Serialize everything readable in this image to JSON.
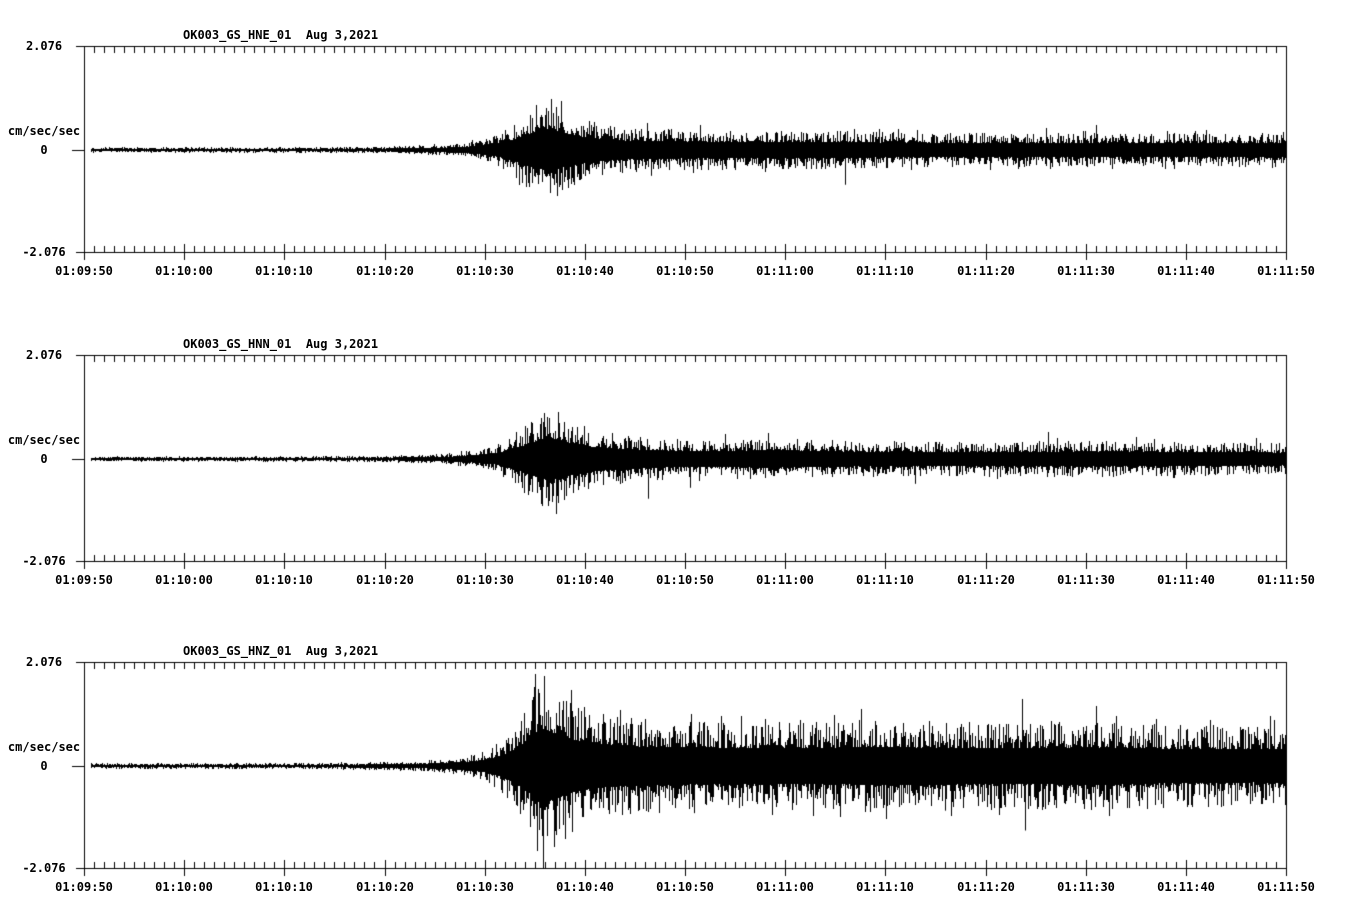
{
  "page": {
    "background_color": "#ffffff",
    "ink_color": "#000000",
    "description": "Three-channel strong-motion seismogram record, station OK003"
  },
  "chart_data": [
    {
      "type": "line",
      "subtype": "seismogram",
      "title_text": "OK003_GS_HNE_01  Aug 3,2021",
      "station_channel": "OK003_GS_HNE_01",
      "date_label": "Aug 3,2021",
      "units_label": "cm/sec/sec",
      "y_tick_labels": [
        "2.076",
        "0",
        "-2.076"
      ],
      "ylim": [
        -2.076,
        2.076
      ],
      "x_tick_labels": [
        "01:09:50",
        "01:10:00",
        "01:10:10",
        "01:10:20",
        "01:10:30",
        "01:10:40",
        "01:10:50",
        "01:11:00",
        "01:11:10",
        "01:11:20",
        "01:11:30",
        "01:11:40",
        "01:11:50"
      ],
      "x_span_seconds": 120,
      "seconds_per_minor_tick": 1,
      "seconds_per_major_tick": 10,
      "grid": false,
      "legend": false,
      "seed": 101,
      "trace_start_seconds": 0.65,
      "envelope_t": [
        0,
        20,
        30,
        36,
        39,
        41,
        43,
        45,
        46.5,
        48,
        51,
        55,
        60,
        70,
        85,
        105,
        120
      ],
      "envelope_a": [
        0.055,
        0.06,
        0.07,
        0.11,
        0.18,
        0.3,
        0.55,
        0.9,
        1.06,
        0.82,
        0.55,
        0.45,
        0.42,
        0.4,
        0.36,
        0.33,
        0.36
      ],
      "spikes": [
        {
          "t": 56.2,
          "a": 0.55
        },
        {
          "t": 56.6,
          "a": -0.52
        },
        {
          "t": 61.5,
          "a": 0.5
        },
        {
          "t": 76.0,
          "a": -0.7
        },
        {
          "t": 96.0,
          "a": 0.45
        },
        {
          "t": 101.0,
          "a": 0.5
        },
        {
          "t": 112.0,
          "a": 0.4
        }
      ]
    },
    {
      "type": "line",
      "subtype": "seismogram",
      "title_text": "OK003_GS_HNN_01  Aug 3,2021",
      "station_channel": "OK003_GS_HNN_01",
      "date_label": "Aug 3,2021",
      "units_label": "cm/sec/sec",
      "y_tick_labels": [
        "2.076",
        "0",
        "-2.076"
      ],
      "ylim": [
        -2.076,
        2.076
      ],
      "x_tick_labels": [
        "01:09:50",
        "01:10:00",
        "01:10:10",
        "01:10:20",
        "01:10:30",
        "01:10:40",
        "01:10:50",
        "01:11:00",
        "01:11:10",
        "01:11:20",
        "01:11:30",
        "01:11:40",
        "01:11:50"
      ],
      "x_span_seconds": 120,
      "seconds_per_minor_tick": 1,
      "seconds_per_major_tick": 10,
      "grid": false,
      "legend": false,
      "seed": 202,
      "trace_start_seconds": 0.65,
      "envelope_t": [
        0,
        20,
        30,
        36,
        39,
        41,
        43,
        45,
        46.5,
        48,
        51,
        55,
        58,
        63,
        68,
        75,
        85,
        100,
        110,
        120
      ],
      "envelope_a": [
        0.05,
        0.055,
        0.065,
        0.11,
        0.17,
        0.28,
        0.52,
        0.88,
        1.1,
        0.85,
        0.58,
        0.48,
        0.42,
        0.38,
        0.44,
        0.38,
        0.35,
        0.38,
        0.34,
        0.32
      ],
      "spikes": [
        {
          "t": 56.3,
          "a": -0.8
        },
        {
          "t": 60.5,
          "a": -0.58
        },
        {
          "t": 64.0,
          "a": 0.5
        },
        {
          "t": 68.3,
          "a": 0.52
        },
        {
          "t": 83.0,
          "a": -0.5
        },
        {
          "t": 96.2,
          "a": 0.55
        },
        {
          "t": 105.0,
          "a": 0.45
        },
        {
          "t": 117.0,
          "a": 0.42
        }
      ]
    },
    {
      "type": "line",
      "subtype": "seismogram",
      "title_text": "OK003_GS_HNZ_01  Aug 3,2021",
      "station_channel": "OK003_GS_HNZ_01",
      "date_label": "Aug 3,2021",
      "units_label": "cm/sec/sec",
      "y_tick_labels": [
        "2.076",
        "0",
        "-2.076"
      ],
      "ylim": [
        -2.076,
        2.076
      ],
      "x_tick_labels": [
        "01:09:50",
        "01:10:00",
        "01:10:10",
        "01:10:20",
        "01:10:30",
        "01:10:40",
        "01:10:50",
        "01:11:00",
        "01:11:10",
        "01:11:20",
        "01:11:30",
        "01:11:40",
        "01:11:50"
      ],
      "x_span_seconds": 120,
      "seconds_per_minor_tick": 1,
      "seconds_per_major_tick": 10,
      "grid": false,
      "legend": false,
      "seed": 303,
      "trace_start_seconds": 0.65,
      "envelope_t": [
        0,
        20,
        28,
        33,
        37,
        40,
        42,
        44,
        45.5,
        47,
        49,
        51,
        54,
        58,
        63,
        70,
        80,
        90,
        100,
        110,
        120
      ],
      "envelope_a": [
        0.055,
        0.06,
        0.075,
        0.1,
        0.16,
        0.3,
        0.6,
        1.15,
        1.9,
        1.65,
        1.3,
        1.1,
        1.0,
        0.95,
        0.9,
        0.88,
        0.95,
        0.88,
        0.92,
        0.85,
        0.82
      ],
      "spikes": [
        {
          "t": 56.0,
          "a": 0.95
        },
        {
          "t": 60.6,
          "a": 1.05
        },
        {
          "t": 60.9,
          "a": -0.95
        },
        {
          "t": 68.0,
          "a": 0.95
        },
        {
          "t": 71.5,
          "a": 0.92
        },
        {
          "t": 77.6,
          "a": 1.15
        },
        {
          "t": 86.0,
          "a": -0.9
        },
        {
          "t": 93.6,
          "a": 1.35
        },
        {
          "t": 93.9,
          "a": -1.3
        },
        {
          "t": 101.0,
          "a": 1.2
        },
        {
          "t": 107.0,
          "a": 0.95
        },
        {
          "t": 112.4,
          "a": 0.92
        },
        {
          "t": 118.4,
          "a": 1.0
        }
      ]
    }
  ]
}
